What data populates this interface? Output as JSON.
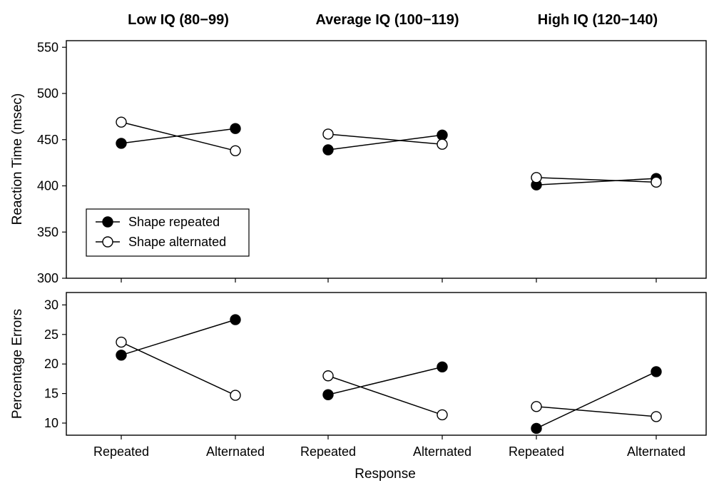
{
  "chart_data": {
    "type": "line",
    "groups": [
      "Low IQ (80−99)",
      "Average IQ (100−119)",
      "High IQ (120−140)"
    ],
    "categories": [
      "Repeated",
      "Alternated",
      "Repeated",
      "Alternated",
      "Repeated",
      "Alternated"
    ],
    "xlabel": "Response",
    "legend": {
      "placement": "inside-lower-left-of-top-panel",
      "entries": [
        {
          "name": "Shape repeated",
          "marker": "filled-circle",
          "color": "#000000"
        },
        {
          "name": "Shape alternated",
          "marker": "open-circle",
          "color": "#000000"
        }
      ]
    },
    "panels": [
      {
        "ylabel": "Reaction Time (msec)",
        "ylim": [
          300,
          560
        ],
        "yticks": [
          300,
          350,
          400,
          450,
          500,
          550
        ],
        "ytick_labels": [
          "300",
          "350",
          "400",
          "450",
          "500",
          "550"
        ],
        "series": [
          {
            "name": "Shape repeated",
            "values": [
              [
                446,
                462
              ],
              [
                439,
                455
              ],
              [
                401,
                408
              ]
            ]
          },
          {
            "name": "Shape alternated",
            "values": [
              [
                469,
                438
              ],
              [
                456,
                445
              ],
              [
                409,
                404
              ]
            ]
          }
        ]
      },
      {
        "ylabel": "Percentage Errors",
        "ylim": [
          8,
          32
        ],
        "yticks": [
          10,
          15,
          20,
          25,
          30
        ],
        "ytick_labels": [
          "10",
          "15",
          "20",
          "25",
          "30"
        ],
        "series": [
          {
            "name": "Shape repeated",
            "values": [
              [
                21.5,
                27.5
              ],
              [
                14.8,
                19.5
              ],
              [
                9.1,
                18.7
              ]
            ]
          },
          {
            "name": "Shape alternated",
            "values": [
              [
                23.7,
                14.7
              ],
              [
                18.0,
                11.4
              ],
              [
                12.8,
                11.1
              ]
            ]
          }
        ]
      }
    ]
  }
}
